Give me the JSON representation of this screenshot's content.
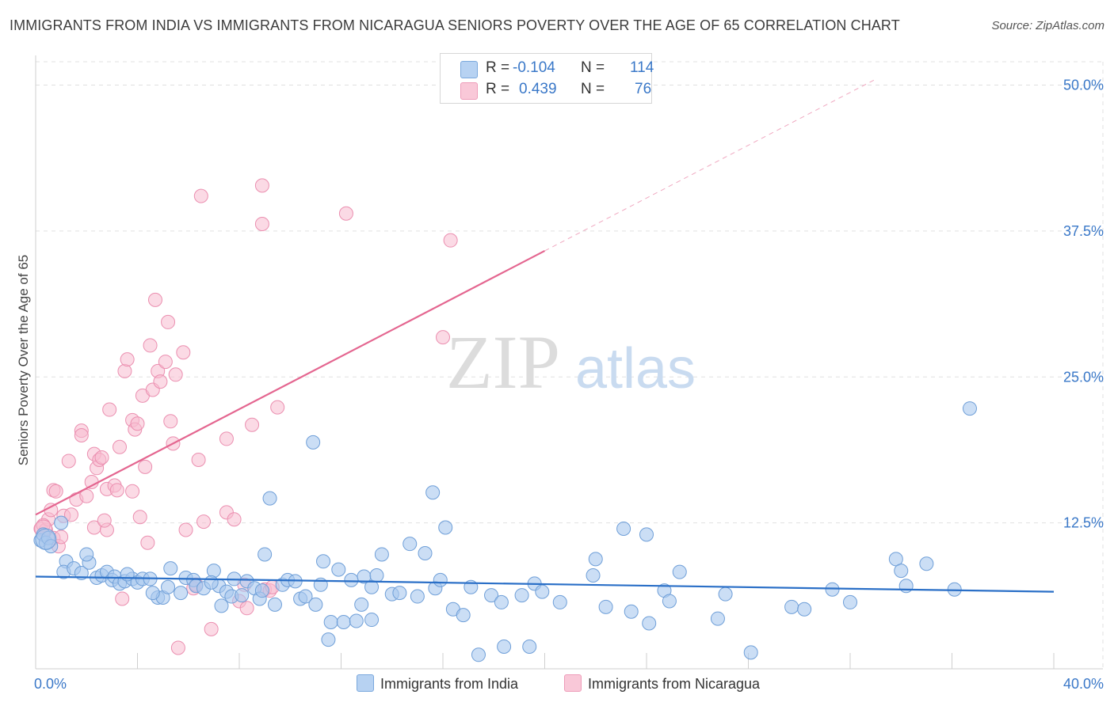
{
  "header": {
    "title": "IMMIGRANTS FROM INDIA VS IMMIGRANTS FROM NICARAGUA SENIORS POVERTY OVER THE AGE OF 65 CORRELATION CHART",
    "source": "Source: ZipAtlas.com"
  },
  "legend": {
    "india": {
      "r_label": "R =",
      "r_value": "-0.104",
      "n_label": "N =",
      "n_value": "114",
      "name": "Immigrants from India"
    },
    "nicaragua": {
      "r_label": "R =",
      "r_value": "0.439",
      "n_label": "N =",
      "n_value": "76",
      "name": "Immigrants from Nicaragua"
    }
  },
  "watermark": {
    "zip": "ZIP",
    "atlas": "atlas"
  },
  "colors": {
    "india_fill": "#a9c8ee",
    "india_stroke": "#6f9fd8",
    "india_line": "#2a6fc7",
    "nicaragua_fill": "#f7bcd0",
    "nicaragua_stroke": "#eb8fb0",
    "nicaragua_line": "#e46690",
    "grid": "#e0e0e0",
    "tick_label": "#3a78c8"
  },
  "chart_data": {
    "type": "scatter",
    "xlabel": "",
    "ylabel": "Seniors Poverty Over the Age of 65",
    "xlim": [
      0,
      40
    ],
    "ylim": [
      0,
      52
    ],
    "x_tick_labels": [
      {
        "value": 0,
        "label": "0.0%"
      },
      {
        "value": 40,
        "label": "40.0%"
      }
    ],
    "y_tick_labels": [
      {
        "value": 12.5,
        "label": "12.5%"
      },
      {
        "value": 25,
        "label": "25.0%"
      },
      {
        "value": 37.5,
        "label": "37.5%"
      },
      {
        "value": 50,
        "label": "50.0%"
      }
    ],
    "grid": true,
    "legend_position": "top-center",
    "series": [
      {
        "name": "Immigrants from India",
        "trend": {
          "x": [
            0,
            40
          ],
          "y": [
            7.9,
            6.6
          ],
          "style": "solid"
        },
        "points": [
          [
            0.2,
            11.0
          ],
          [
            0.3,
            11.5
          ],
          [
            0.4,
            10.8
          ],
          [
            0.5,
            11.2
          ],
          [
            0.6,
            10.5
          ],
          [
            1.0,
            12.5
          ],
          [
            1.2,
            9.2
          ],
          [
            1.1,
            8.3
          ],
          [
            1.5,
            8.6
          ],
          [
            1.8,
            8.2
          ],
          [
            2.1,
            9.1
          ],
          [
            2.4,
            7.8
          ],
          [
            2.6,
            8.0
          ],
          [
            2.8,
            8.3
          ],
          [
            3.0,
            7.6
          ],
          [
            3.1,
            7.9
          ],
          [
            3.3,
            7.3
          ],
          [
            3.5,
            7.5
          ],
          [
            3.8,
            7.7
          ],
          [
            4.0,
            7.4
          ],
          [
            4.2,
            7.7
          ],
          [
            4.5,
            7.7
          ],
          [
            4.8,
            6.1
          ],
          [
            5.0,
            6.1
          ],
          [
            5.2,
            7.0
          ],
          [
            5.3,
            8.6
          ],
          [
            5.7,
            6.5
          ],
          [
            5.9,
            7.8
          ],
          [
            6.2,
            7.6
          ],
          [
            6.3,
            7.1
          ],
          [
            6.6,
            6.9
          ],
          [
            7.0,
            8.4
          ],
          [
            7.2,
            7.1
          ],
          [
            7.5,
            6.6
          ],
          [
            7.7,
            6.2
          ],
          [
            7.8,
            7.7
          ],
          [
            8.1,
            6.3
          ],
          [
            8.3,
            7.5
          ],
          [
            8.6,
            6.9
          ],
          [
            8.8,
            6.0
          ],
          [
            9.0,
            9.8
          ],
          [
            9.2,
            14.6
          ],
          [
            9.4,
            5.5
          ],
          [
            9.7,
            7.2
          ],
          [
            9.9,
            7.6
          ],
          [
            10.2,
            7.5
          ],
          [
            10.4,
            6.0
          ],
          [
            10.6,
            6.2
          ],
          [
            11.0,
            5.5
          ],
          [
            11.2,
            7.2
          ],
          [
            11.3,
            9.2
          ],
          [
            11.5,
            2.5
          ],
          [
            11.6,
            4.0
          ],
          [
            11.9,
            8.5
          ],
          [
            12.1,
            4.0
          ],
          [
            12.6,
            4.1
          ],
          [
            12.8,
            5.5
          ],
          [
            12.9,
            7.9
          ],
          [
            13.2,
            7.0
          ],
          [
            13.4,
            8.0
          ],
          [
            13.6,
            9.8
          ],
          [
            14.0,
            6.4
          ],
          [
            14.3,
            6.5
          ],
          [
            14.7,
            10.7
          ],
          [
            15.0,
            6.2
          ],
          [
            15.3,
            9.9
          ],
          [
            15.7,
            6.9
          ],
          [
            15.9,
            7.6
          ],
          [
            16.1,
            12.1
          ],
          [
            16.4,
            5.1
          ],
          [
            16.8,
            4.6
          ],
          [
            17.1,
            7.0
          ],
          [
            17.4,
            1.2
          ],
          [
            17.9,
            6.3
          ],
          [
            18.3,
            5.7
          ],
          [
            18.4,
            1.9
          ],
          [
            19.1,
            6.3
          ],
          [
            19.4,
            1.9
          ],
          [
            19.6,
            7.3
          ],
          [
            19.9,
            6.6
          ],
          [
            20.6,
            5.7
          ],
          [
            21.9,
            8.0
          ],
          [
            22.0,
            9.4
          ],
          [
            22.4,
            5.3
          ],
          [
            23.1,
            12.0
          ],
          [
            23.4,
            4.9
          ],
          [
            24.0,
            11.5
          ],
          [
            24.1,
            3.9
          ],
          [
            24.7,
            6.7
          ],
          [
            24.9,
            5.8
          ],
          [
            25.3,
            8.3
          ],
          [
            26.8,
            4.3
          ],
          [
            27.1,
            6.4
          ],
          [
            28.1,
            1.4
          ],
          [
            29.7,
            5.3
          ],
          [
            30.2,
            5.1
          ],
          [
            31.3,
            6.8
          ],
          [
            32.0,
            5.7
          ],
          [
            33.8,
            9.4
          ],
          [
            34.0,
            8.4
          ],
          [
            34.2,
            7.1
          ],
          [
            35.0,
            9.0
          ],
          [
            36.1,
            6.8
          ],
          [
            36.7,
            22.3
          ],
          [
            10.9,
            19.4
          ],
          [
            15.6,
            15.1
          ],
          [
            13.2,
            4.2
          ],
          [
            7.3,
            5.4
          ],
          [
            4.6,
            6.5
          ],
          [
            2.0,
            9.8
          ],
          [
            3.6,
            8.1
          ],
          [
            6.9,
            7.4
          ],
          [
            8.9,
            6.7
          ],
          [
            12.4,
            7.6
          ]
        ]
      },
      {
        "name": "Immigrants from Nicaragua",
        "trend": {
          "x": [
            0,
            20
          ],
          "y": [
            13.2,
            35.8
          ],
          "style": "solid",
          "dashed_extension": {
            "x": [
              20,
              33
            ],
            "y": [
              35.8,
              50.5
            ]
          }
        },
        "points": [
          [
            0.2,
            12.0
          ],
          [
            0.4,
            11.9
          ],
          [
            0.5,
            12.8
          ],
          [
            0.6,
            13.6
          ],
          [
            0.7,
            11.2
          ],
          [
            0.7,
            15.3
          ],
          [
            0.8,
            15.2
          ],
          [
            0.9,
            10.5
          ],
          [
            1.0,
            11.3
          ],
          [
            1.1,
            13.1
          ],
          [
            1.3,
            17.8
          ],
          [
            1.4,
            13.2
          ],
          [
            1.6,
            14.5
          ],
          [
            1.8,
            20.4
          ],
          [
            1.8,
            20.0
          ],
          [
            2.0,
            14.8
          ],
          [
            2.2,
            16.0
          ],
          [
            2.3,
            18.4
          ],
          [
            2.3,
            12.1
          ],
          [
            2.4,
            17.2
          ],
          [
            2.5,
            17.9
          ],
          [
            2.6,
            18.1
          ],
          [
            2.8,
            15.4
          ],
          [
            2.8,
            11.9
          ],
          [
            2.9,
            22.2
          ],
          [
            3.1,
            15.7
          ],
          [
            3.2,
            15.3
          ],
          [
            3.3,
            19.0
          ],
          [
            3.5,
            25.5
          ],
          [
            3.6,
            26.5
          ],
          [
            3.8,
            15.2
          ],
          [
            3.8,
            21.3
          ],
          [
            3.9,
            20.5
          ],
          [
            4.0,
            21.0
          ],
          [
            4.2,
            23.4
          ],
          [
            4.3,
            17.3
          ],
          [
            4.4,
            10.8
          ],
          [
            4.5,
            27.7
          ],
          [
            4.6,
            23.9
          ],
          [
            4.7,
            31.6
          ],
          [
            4.8,
            25.5
          ],
          [
            4.9,
            24.6
          ],
          [
            5.1,
            26.3
          ],
          [
            5.2,
            29.7
          ],
          [
            5.3,
            21.2
          ],
          [
            5.4,
            19.3
          ],
          [
            5.5,
            25.2
          ],
          [
            5.6,
            1.8
          ],
          [
            5.8,
            27.1
          ],
          [
            5.9,
            11.9
          ],
          [
            6.2,
            6.9
          ],
          [
            6.3,
            7.2
          ],
          [
            6.4,
            17.9
          ],
          [
            6.5,
            40.5
          ],
          [
            6.6,
            12.6
          ],
          [
            6.9,
            3.4
          ],
          [
            7.5,
            19.7
          ],
          [
            7.5,
            13.4
          ],
          [
            7.8,
            12.8
          ],
          [
            8.0,
            5.8
          ],
          [
            8.2,
            7.2
          ],
          [
            8.5,
            20.9
          ],
          [
            8.9,
            41.4
          ],
          [
            8.9,
            38.1
          ],
          [
            9.0,
            6.8
          ],
          [
            9.2,
            6.7
          ],
          [
            9.5,
            22.4
          ],
          [
            12.2,
            39.0
          ],
          [
            16.3,
            36.7
          ],
          [
            16.0,
            28.4
          ],
          [
            8.3,
            5.2
          ],
          [
            9.3,
            7.0
          ],
          [
            3.4,
            6.0
          ],
          [
            4.1,
            13.0
          ],
          [
            0.3,
            12.3
          ],
          [
            2.7,
            12.7
          ]
        ]
      }
    ]
  }
}
